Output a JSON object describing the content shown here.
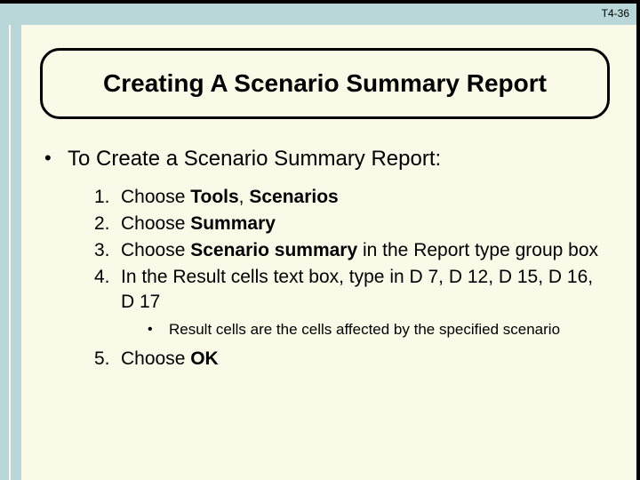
{
  "page_number": "T4-36",
  "title": "Creating A Scenario Summary Report",
  "intro": "To Create a Scenario Summary Report:",
  "steps": {
    "s1": {
      "num": "1.",
      "a": "Choose ",
      "b": "Tools",
      "c": ", ",
      "d": "Scenarios"
    },
    "s2": {
      "num": "2.",
      "a": "Choose ",
      "b": "Summary"
    },
    "s3": {
      "num": "3.",
      "a": "Choose ",
      "b": "Scenario summary",
      "c": " in the Report type group box"
    },
    "s4": {
      "num": "4.",
      "a": "In the Result cells text box, type in D 7, D 12, D 15, D 16, D 17"
    },
    "s5": {
      "num": "5.",
      "a": "Choose ",
      "b": "OK"
    }
  },
  "sub_bullet": "Result cells are the cells affected by the specified scenario",
  "colors": {
    "background": "#fbfae8",
    "accent_bar": "#b9d7d9",
    "border": "#000000",
    "text": "#000000"
  },
  "typography": {
    "title_fontsize": 28,
    "intro_fontsize": 24,
    "step_fontsize": 21,
    "sub_fontsize": 17
  }
}
